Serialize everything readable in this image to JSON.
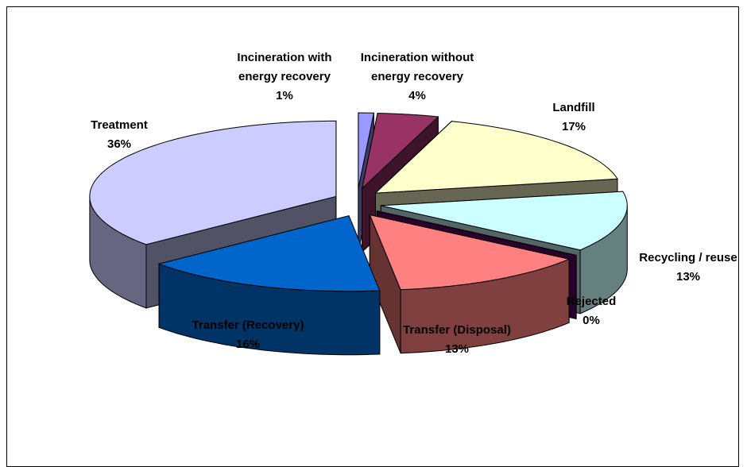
{
  "chart_data": {
    "type": "pie",
    "categories": [
      "Incineration with energy recovery",
      "Incineration without energy recovery",
      "Landfill",
      "Recycling / reuse",
      "Rejected",
      "Transfer (Disposal)",
      "Transfer (Recovery)",
      "Treatment"
    ],
    "values": [
      1,
      4,
      17,
      13,
      0,
      13,
      16,
      36
    ],
    "value_labels": [
      "1%",
      "4%",
      "17%",
      "13%",
      "0%",
      "13%",
      "16%",
      "36%"
    ],
    "colors": [
      "#9999ff",
      "#993366",
      "#ffffcc",
      "#ccffff",
      "#660066",
      "#ff8080",
      "#0066cc",
      "#ccccff"
    ]
  }
}
